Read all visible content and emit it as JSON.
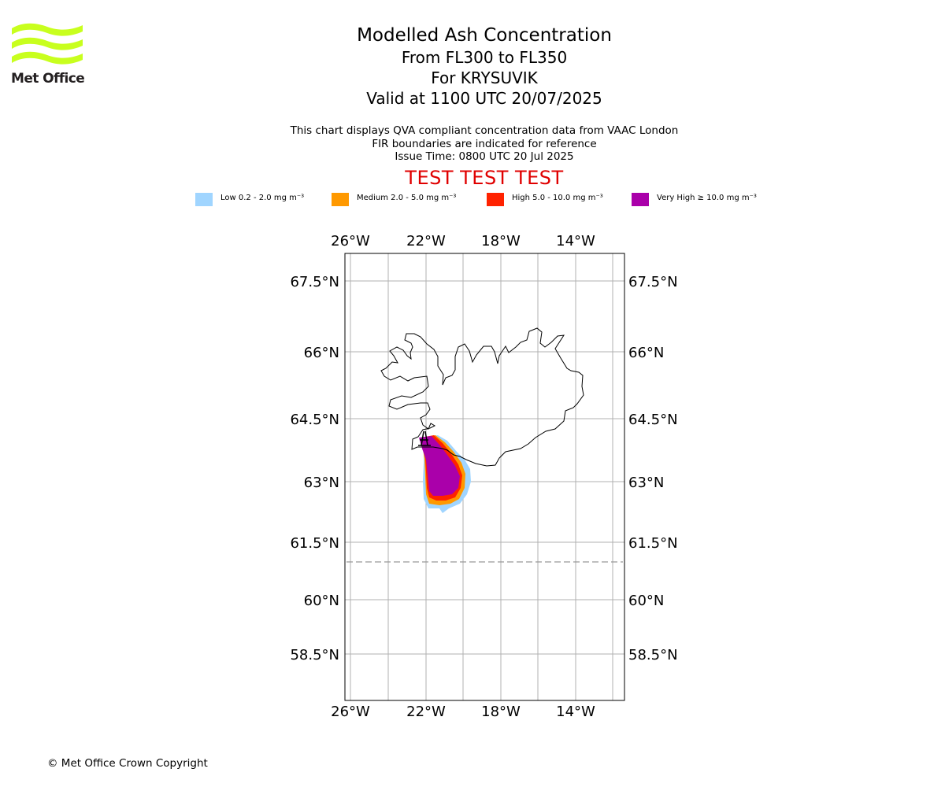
{
  "logo": {
    "text": "Met Office",
    "color": "#c8ff1e"
  },
  "header": {
    "title": "Modelled Ash Concentration",
    "levels": "From FL300 to FL350",
    "volcano": "For KRYSUVIK",
    "valid": "Valid at 1100 UTC 20/07/2025"
  },
  "notes": {
    "line1": "This chart displays QVA compliant concentration data from VAAC London",
    "line2": "FIR boundaries are indicated for reference",
    "line3": "Issue Time: 0800 UTC 20 Jul 2025"
  },
  "banner": "TEST TEST TEST",
  "legend": [
    {
      "label": "Low 0.2 - 2.0 mg m⁻³",
      "color": "#a0d5ff"
    },
    {
      "label": "Medium 2.0 - 5.0 mg m⁻³",
      "color": "#ff9900"
    },
    {
      "label": "High 5.0 - 10.0 mg m⁻³",
      "color": "#ff2200"
    },
    {
      "label": "Very High ≥ 10.0 mg m⁻³",
      "color": "#aa00aa"
    }
  ],
  "map": {
    "lon_ticks": [
      "26°W",
      "22°W",
      "18°W",
      "14°W"
    ],
    "lat_ticks": [
      "67.5°N",
      "66°N",
      "64.5°N",
      "63°N",
      "61.5°N",
      "60°N",
      "58.5°N"
    ],
    "grid": true,
    "fir_boundary_lat": 61
  },
  "footer": {
    "copyright": "© Met Office Crown Copyright"
  }
}
